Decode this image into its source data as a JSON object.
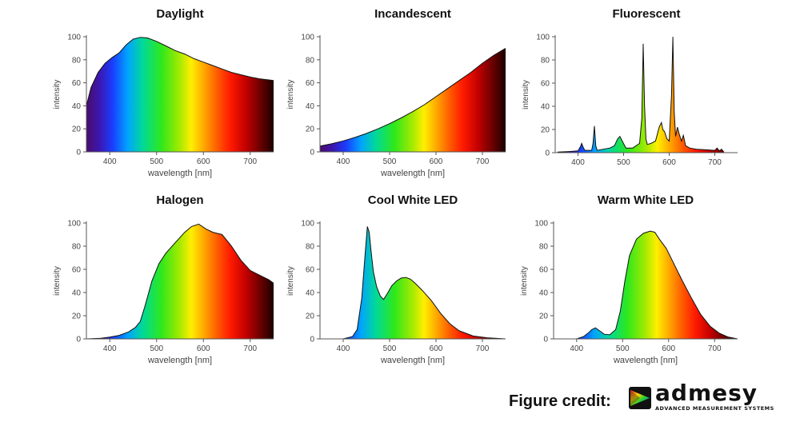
{
  "chart_data": [
    {
      "type": "area",
      "title": "Daylight",
      "xlabel": "wavelength [nm]",
      "ylabel": "intensity",
      "xlim": [
        350,
        750
      ],
      "ylim": [
        0,
        100
      ],
      "xticks": [
        400,
        500,
        600,
        700
      ],
      "yticks": [
        0,
        20,
        40,
        60,
        80,
        100
      ],
      "gradient_fill": true,
      "series": [
        {
          "x": [
            350,
            360,
            375,
            390,
            405,
            420,
            435,
            450,
            465,
            480,
            500,
            520,
            540,
            560,
            580,
            600,
            620,
            640,
            660,
            680,
            700,
            720,
            740,
            750
          ],
          "y": [
            40,
            56,
            69,
            77,
            82,
            86,
            93,
            98,
            99.5,
            99,
            96,
            92,
            88,
            85,
            81,
            78,
            75,
            72,
            69,
            67,
            65,
            63.5,
            62.5,
            62
          ]
        }
      ]
    },
    {
      "type": "area",
      "title": "Incandescent",
      "xlabel": "wavelength [nm]",
      "ylabel": "intensity",
      "xlim": [
        350,
        750
      ],
      "ylim": [
        0,
        100
      ],
      "xticks": [
        400,
        500,
        600,
        700
      ],
      "yticks": [
        0,
        20,
        40,
        60,
        80,
        100
      ],
      "gradient_fill": true,
      "series": [
        {
          "x": [
            350,
            375,
            400,
            425,
            450,
            475,
            500,
            525,
            550,
            575,
            600,
            625,
            650,
            675,
            700,
            725,
            750
          ],
          "y": [
            5,
            7,
            9.5,
            12.5,
            16,
            20,
            24.5,
            29.5,
            35,
            41,
            48,
            55,
            62,
            69,
            77,
            84,
            90
          ]
        }
      ]
    },
    {
      "type": "area",
      "title": "Fluorescent",
      "xlabel": "",
      "ylabel": "intensity",
      "xlim": [
        350,
        750
      ],
      "ylim": [
        0,
        100
      ],
      "xticks": [
        400,
        500,
        600,
        700
      ],
      "yticks": [
        0,
        20,
        40,
        60,
        80,
        100
      ],
      "gradient_fill": true,
      "series": [
        {
          "x": [
            355,
            380,
            400,
            405,
            408,
            411,
            415,
            430,
            433,
            436,
            439,
            442,
            470,
            480,
            487,
            492,
            497,
            505,
            520,
            535,
            540,
            543,
            546,
            549,
            552,
            560,
            570,
            578,
            583,
            586,
            590,
            595,
            600,
            605,
            608,
            611,
            614,
            618,
            622,
            627,
            631,
            636,
            645,
            660,
            680,
            700,
            705,
            710,
            715,
            720
          ],
          "y": [
            0.5,
            1,
            1.5,
            5,
            8,
            5,
            2,
            2,
            8,
            23,
            6,
            2,
            4,
            6,
            12,
            14,
            10,
            4,
            4,
            8,
            30,
            94,
            40,
            12,
            7,
            8,
            10,
            22,
            26,
            20,
            18,
            12,
            10,
            50,
            100,
            35,
            14,
            22,
            16,
            10,
            15,
            6,
            4,
            3,
            2.5,
            2,
            4,
            1.5,
            3,
            0.5
          ]
        }
      ]
    },
    {
      "type": "area",
      "title": "Halogen",
      "xlabel": "wavelength [nm]",
      "ylabel": "intensity",
      "xlim": [
        350,
        750
      ],
      "ylim": [
        0,
        100
      ],
      "xticks": [
        400,
        500,
        600,
        700
      ],
      "yticks": [
        0,
        20,
        40,
        60,
        80,
        100
      ],
      "gradient_fill": true,
      "series": [
        {
          "x": [
            350,
            380,
            400,
            420,
            440,
            455,
            465,
            475,
            490,
            505,
            520,
            540,
            560,
            575,
            590,
            605,
            620,
            640,
            660,
            680,
            700,
            720,
            740,
            750
          ],
          "y": [
            0,
            0.5,
            1.5,
            3,
            6,
            10,
            15,
            28,
            50,
            65,
            74,
            83,
            92,
            97,
            99,
            95,
            92,
            90,
            80,
            68,
            59,
            55,
            51,
            48
          ]
        }
      ]
    },
    {
      "type": "area",
      "title": "Cool White LED",
      "xlabel": "wavelength [nm]",
      "ylabel": "intensity",
      "xlim": [
        350,
        750
      ],
      "ylim": [
        0,
        100
      ],
      "xticks": [
        400,
        500,
        600,
        700
      ],
      "yticks": [
        0,
        20,
        40,
        60,
        80,
        100
      ],
      "gradient_fill": true,
      "series": [
        {
          "x": [
            350,
            380,
            400,
            420,
            430,
            440,
            447,
            452,
            456,
            460,
            465,
            472,
            480,
            487,
            495,
            505,
            515,
            525,
            535,
            545,
            555,
            570,
            590,
            610,
            630,
            650,
            680,
            710,
            750
          ],
          "y": [
            0,
            0,
            0,
            2,
            8,
            35,
            72,
            97,
            92,
            76,
            58,
            45,
            37,
            34,
            39,
            46,
            50,
            52.5,
            53,
            51.5,
            48,
            42,
            33,
            22,
            13,
            7,
            2.5,
            1,
            0
          ]
        }
      ]
    },
    {
      "type": "area",
      "title": "Warm White LED",
      "xlabel": "wavelength [nm]",
      "ylabel": "intensity",
      "xlim": [
        350,
        750
      ],
      "ylim": [
        0,
        100
      ],
      "xticks": [
        400,
        500,
        600,
        700
      ],
      "yticks": [
        0,
        20,
        40,
        60,
        80,
        100
      ],
      "gradient_fill": true,
      "series": [
        {
          "x": [
            350,
            400,
            415,
            425,
            433,
            441,
            450,
            460,
            472,
            485,
            495,
            505,
            515,
            530,
            545,
            560,
            570,
            580,
            595,
            610,
            630,
            650,
            670,
            690,
            710,
            730,
            750
          ],
          "y": [
            0,
            0,
            2,
            5,
            8,
            9.5,
            7,
            4,
            3.5,
            8,
            24,
            50,
            72,
            86,
            91,
            93,
            92,
            86,
            78,
            66,
            50,
            35,
            21,
            11,
            5,
            1.5,
            0
          ]
        }
      ]
    }
  ],
  "credit": {
    "label": "Figure credit:",
    "logo_word": "admesy",
    "logo_tagline": "ADVANCED MEASUREMENT SYSTEMS"
  }
}
